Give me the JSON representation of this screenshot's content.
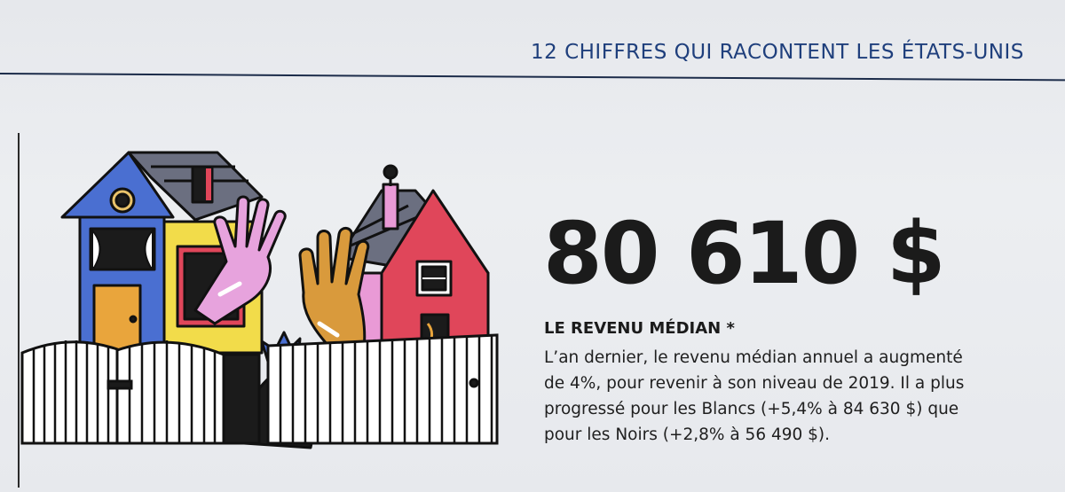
{
  "header": {
    "section_title": "12 CHIFFRES QUI RACONTENT LES ÉTATS-UNIS"
  },
  "stat": {
    "value": "80 610 $",
    "label": "LE REVENU MÉDIAN *",
    "body_lines": [
      "L’an dernier, le revenu médian annuel a augmenté",
      "de 4%, pour revenir à son niveau de 2019. Il a plus",
      "progressé pour les Blancs (+5,4% à 84 630 $) que",
      "pour les Noirs (+2,8% à 56 490 $)."
    ]
  },
  "colors": {
    "header_blue": "#1f3f7c",
    "house_blue": "#4a6fd1",
    "house_yellow": "#f2dc4a",
    "house_red": "#e0465a",
    "house_pink": "#e99ad6",
    "roof_gray": "#6b6f80",
    "hand_pink": "#e7a3dd",
    "hand_tan": "#d99a3c",
    "ink": "#1b1b1b"
  },
  "illustration": {
    "subject": "two-houses-with-waving-hands-behind-picket-fence"
  }
}
